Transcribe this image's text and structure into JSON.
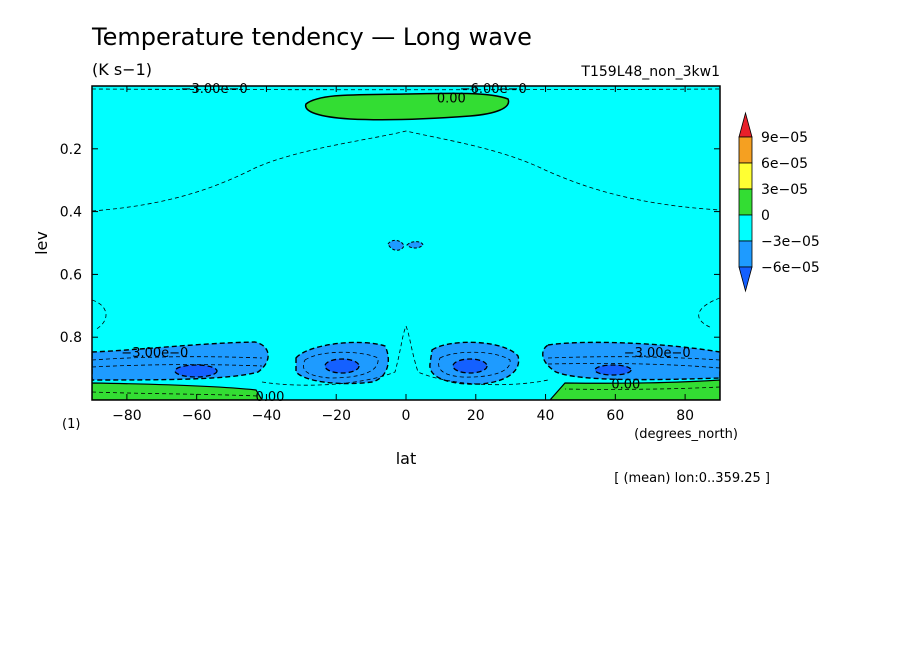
{
  "chart_data": {
    "type": "heatmap",
    "title": "Temperature tendency — Long wave",
    "units": "(K s−1)",
    "experiment": "T159L48_non_3kw1",
    "xlabel": "lat",
    "xunits": "(degrees_north)",
    "ylabel": "lev",
    "yunits": "(1)",
    "xlim": [
      -90,
      90
    ],
    "ylim": [
      1.0,
      0.0
    ],
    "x_ticks": [
      "−80",
      "−60",
      "−40",
      "−20",
      "0",
      "20",
      "40",
      "60",
      "80"
    ],
    "y_ticks": [
      "0.2",
      "0.4",
      "0.6",
      "0.8"
    ],
    "averaging_note": "[ (mean) lon:0..359.25 ]",
    "colorbar": {
      "levels": [
        "9e−05",
        "6e−05",
        "3e−05",
        "0",
        "−3e−05",
        "−6e−05"
      ],
      "colors": [
        "#e8202a",
        "#f5a021",
        "#ffff33",
        "#33dd33",
        "#00ffff",
        "#1e9bff",
        "#1460ff"
      ]
    },
    "contour_labels": [
      {
        "lat": -55,
        "lev": 0.01,
        "text": "−3.00e−0"
      },
      {
        "lat": 25,
        "lev": 0.01,
        "text": "−6.00e−0"
      },
      {
        "lat": 13,
        "lev": 0.04,
        "text": "0.00"
      },
      {
        "lat": -72,
        "lev": 0.85,
        "text": "−3.00e−0"
      },
      {
        "lat": 72,
        "lev": 0.85,
        "text": "−3.00e−0"
      },
      {
        "lat": -39,
        "lev": 0.99,
        "text": "0.00"
      },
      {
        "lat": 63,
        "lev": 0.95,
        "text": "0.00"
      }
    ],
    "regions": [
      {
        "value_range": "0 to 3e-05",
        "description": "positive band near top, lat −30..30, lev 0.03..0.1"
      },
      {
        "value_range": "0 to 3e-05",
        "description": "positive near surface, poleward of 40°, lev 0.95..1.0"
      },
      {
        "value_range": "-6e-05 to -3e-05",
        "description": "lower troposphere cooling maxima, lev 0.82..0.95"
      },
      {
        "value_range": "< -6e-05",
        "description": "cores near lat ±62, ±17, lev ~0.9"
      }
    ]
  }
}
